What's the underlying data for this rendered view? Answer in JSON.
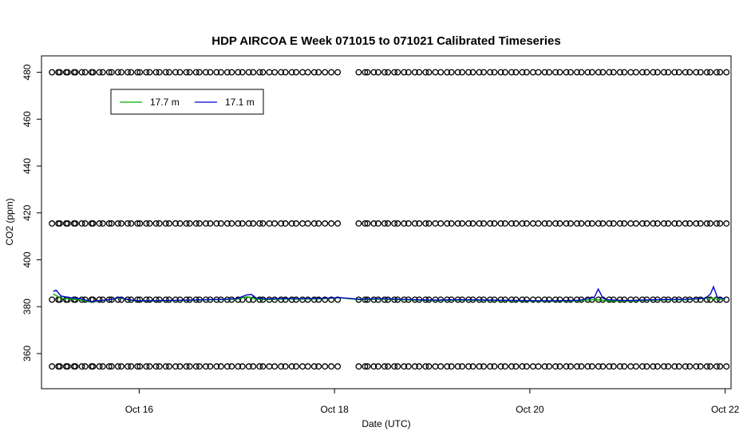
{
  "chart_data": {
    "type": "line",
    "title": "HDP AIRCOA E  Week 071015 to 071021  Calibrated Timeseries",
    "xlabel": "Date (UTC)",
    "ylabel": "CO2 (ppm)",
    "x_start": "Oct 15 00:00 UTC",
    "xlim_days": [
      15.0,
      22.06
    ],
    "ylim": [
      345,
      487
    ],
    "x_ticks": [
      {
        "value": 16,
        "label": "Oct 16"
      },
      {
        "value": 18,
        "label": "Oct 18"
      },
      {
        "value": 20,
        "label": "Oct 20"
      },
      {
        "value": 22,
        "label": "Oct 22"
      }
    ],
    "y_ticks": [
      360,
      380,
      400,
      420,
      440,
      460,
      480
    ],
    "grid": false,
    "legend": {
      "placement": "top-left",
      "entries": [
        {
          "label": "17.7 m",
          "color": "#00aa00"
        },
        {
          "label": "17.1 m",
          "color": "#0000cc"
        }
      ]
    },
    "series": [
      {
        "name": "17.7 m",
        "color": "#00aa00",
        "x": [
          15.12,
          15.2,
          15.3,
          15.4,
          15.5,
          15.6,
          15.7,
          15.8,
          15.9,
          16.0,
          16.2,
          16.4,
          16.6,
          16.8,
          17.0,
          17.1,
          17.2,
          17.3,
          17.5,
          17.7,
          17.9,
          18.05,
          18.25,
          18.5,
          18.8,
          19.0,
          19.3,
          19.6,
          19.9,
          20.2,
          20.5,
          20.66,
          20.72,
          20.8,
          21.0,
          21.3,
          21.6,
          21.8,
          21.85,
          21.9,
          22.0
        ],
        "y": [
          385.5,
          383.5,
          383.2,
          382.8,
          382.0,
          382.5,
          383.0,
          383.8,
          382.8,
          382.4,
          382.5,
          382.6,
          382.8,
          383.0,
          383.2,
          384.2,
          383.2,
          383.0,
          383.3,
          383.2,
          383.4,
          383.8,
          383.0,
          383.2,
          382.8,
          382.6,
          382.8,
          382.6,
          382.4,
          382.3,
          382.5,
          383.0,
          382.8,
          382.4,
          382.4,
          382.8,
          383.0,
          383.5,
          383.6,
          383.3,
          383.1
        ]
      },
      {
        "name": "17.1 m",
        "color": "#0000cc",
        "x": [
          15.12,
          15.15,
          15.2,
          15.3,
          15.4,
          15.5,
          15.6,
          15.7,
          15.8,
          15.9,
          16.0,
          16.2,
          16.4,
          16.6,
          16.8,
          17.0,
          17.1,
          17.15,
          17.2,
          17.3,
          17.5,
          17.7,
          17.9,
          18.05,
          18.25,
          18.5,
          18.8,
          19.0,
          19.3,
          19.6,
          19.9,
          20.2,
          20.5,
          20.66,
          20.7,
          20.75,
          20.8,
          21.0,
          21.3,
          21.6,
          21.8,
          21.85,
          21.88,
          21.92,
          22.0
        ],
        "y": [
          386.5,
          387.0,
          384.5,
          383.8,
          383.4,
          382.2,
          382.6,
          383.0,
          384.0,
          382.9,
          382.5,
          382.6,
          382.7,
          382.9,
          383.1,
          383.4,
          385.0,
          385.2,
          383.6,
          383.3,
          383.5,
          383.4,
          383.6,
          383.9,
          383.2,
          383.4,
          383.0,
          382.8,
          383.0,
          382.8,
          382.6,
          382.5,
          382.7,
          384.0,
          387.5,
          383.5,
          382.9,
          382.6,
          383.0,
          383.2,
          383.6,
          385.5,
          388.5,
          384.0,
          383.3
        ]
      }
    ],
    "flag_points": {
      "marker": "open circle",
      "levels": [
        480,
        415.5,
        383,
        354.5
      ],
      "x": [
        15.14,
        15.22,
        15.3,
        15.38,
        15.48,
        15.56,
        15.66,
        15.75,
        15.85,
        15.95,
        16.04,
        16.14,
        16.24,
        16.34,
        16.45,
        16.55,
        16.65,
        16.76,
        16.87,
        16.98,
        17.09,
        17.2,
        17.3,
        17.42,
        17.53,
        17.64,
        17.76,
        17.87,
        18.0,
        18.28,
        18.37,
        18.48,
        18.58,
        18.68,
        18.79,
        18.9,
        19.0,
        19.12,
        19.23,
        19.34,
        19.45,
        19.56,
        19.67,
        19.78,
        19.89,
        20.0,
        20.12,
        20.23,
        20.34,
        20.45,
        20.56,
        20.67,
        20.78,
        20.89,
        21.0,
        21.12,
        21.23,
        21.34,
        21.45,
        21.56,
        21.67,
        21.78,
        21.88,
        21.98
      ]
    }
  }
}
